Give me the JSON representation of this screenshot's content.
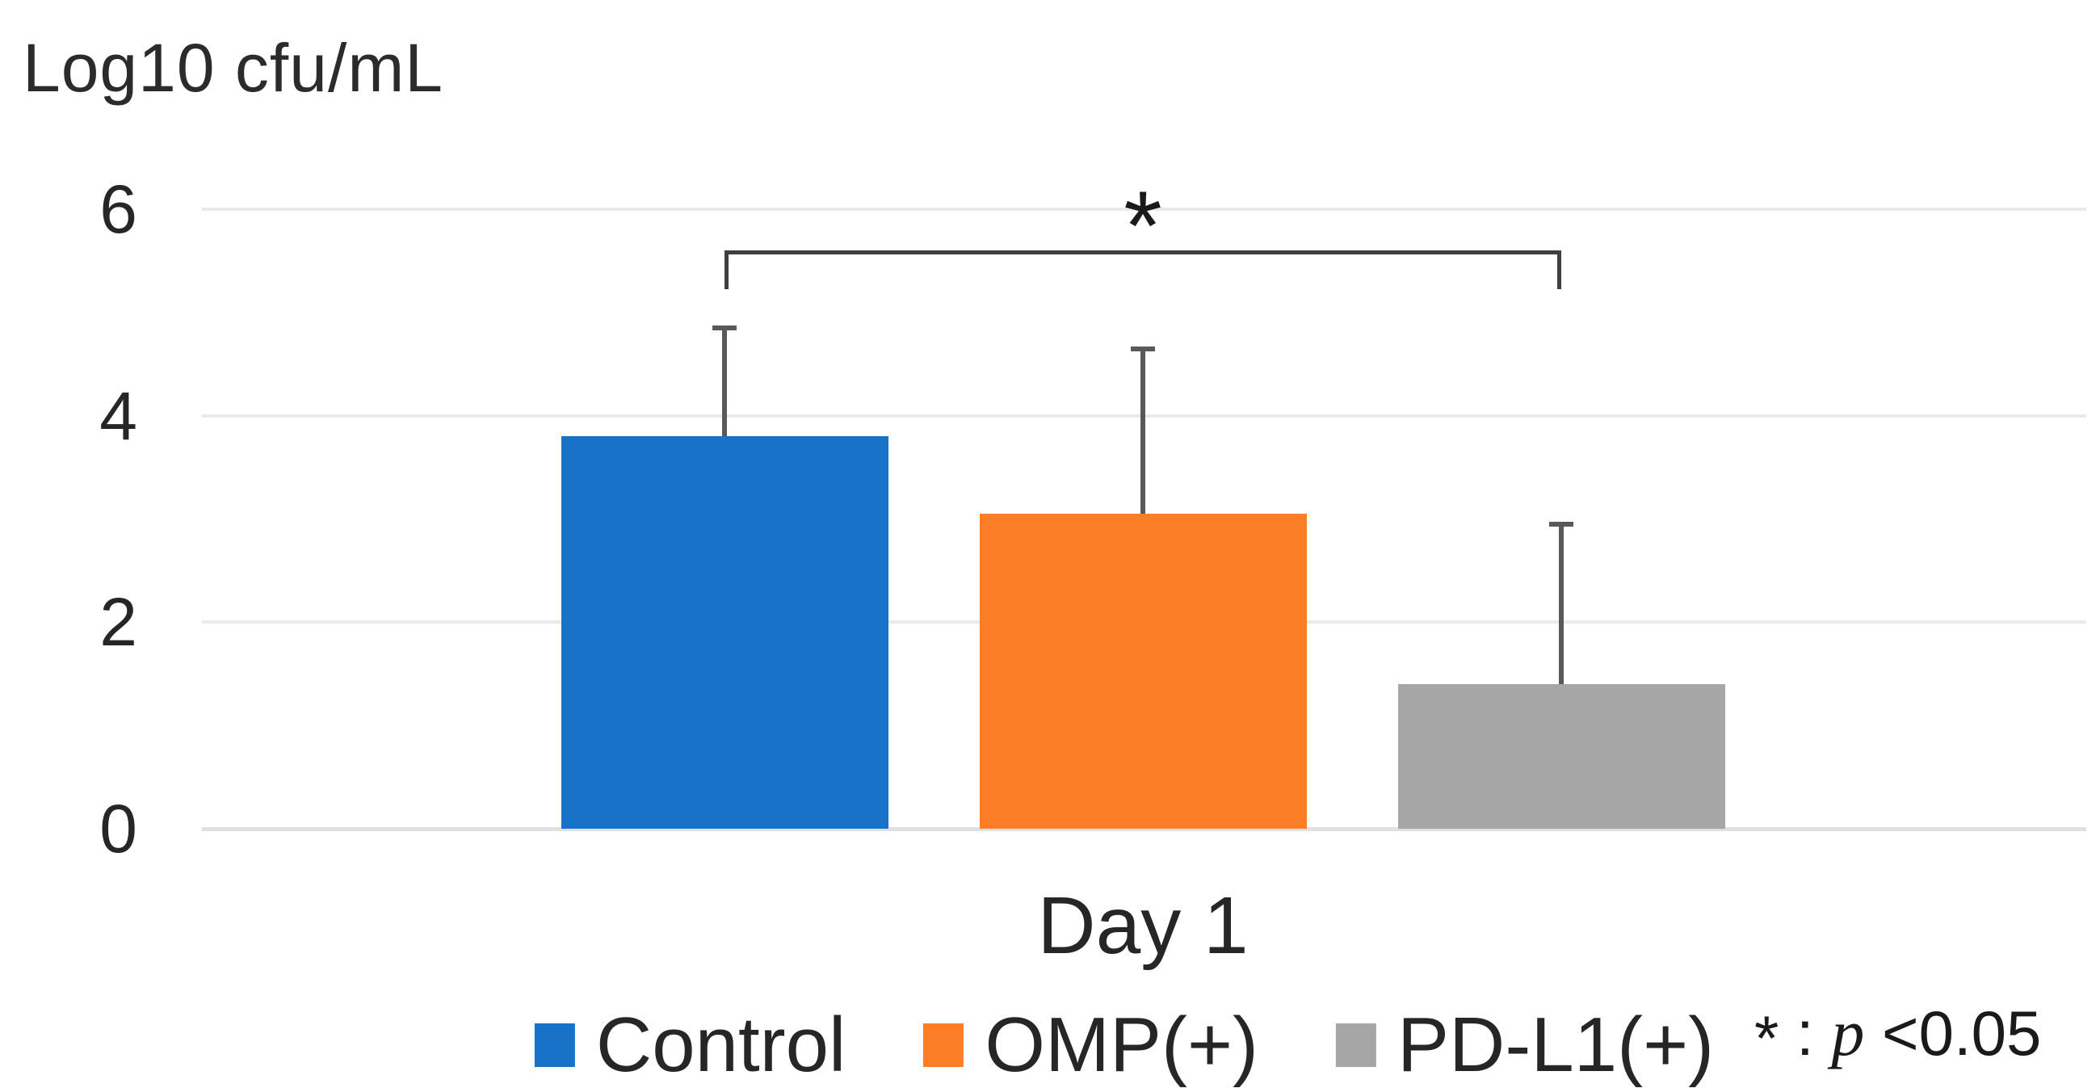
{
  "title": "Log10 cfu/mL",
  "chart_data": {
    "type": "bar",
    "title": "",
    "ylabel": "Log10 cfu/mL",
    "xlabel": "",
    "categories": [
      "Day 1"
    ],
    "series": [
      {
        "name": "Control",
        "color": "#1772C8",
        "values": [
          3.8
        ],
        "error_plus": [
          1.05
        ]
      },
      {
        "name": "OMP(+)",
        "color": "#FB7D26",
        "values": [
          3.05
        ],
        "error_plus": [
          1.6
        ]
      },
      {
        "name": "PD-L1(+)",
        "color": "#A6A6A6",
        "values": [
          1.4
        ],
        "error_plus": [
          1.55
        ]
      }
    ],
    "ylim": [
      0,
      6
    ],
    "yticks": [
      6,
      4,
      2,
      0
    ],
    "grid": true,
    "legend_position": "bottom",
    "significance": {
      "between": [
        "Control",
        "PD-L1(+)"
      ],
      "label": "*"
    },
    "annotation": {
      "star": "*",
      "separator": " : ",
      "p_symbol": "p",
      "threshold": " <0.05"
    }
  },
  "colors": {
    "error_bar": "#595959",
    "bracket": "#3F3F3F",
    "gridline": "#EAEAEA",
    "baseline": "#E0E0E0",
    "text": "#262626"
  }
}
